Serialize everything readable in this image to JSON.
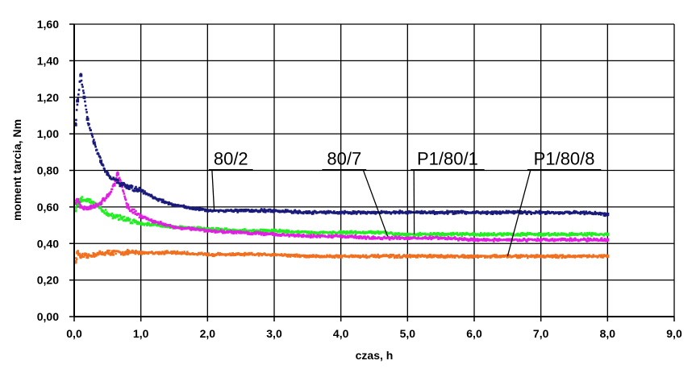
{
  "chart_data": {
    "type": "scatter",
    "xlabel": "czas, h",
    "ylabel": "moment tarcia, Nm",
    "xlim": [
      0,
      9
    ],
    "ylim": [
      0,
      1.6
    ],
    "x_ticks": [
      "0,0",
      "1,0",
      "2,0",
      "3,0",
      "4,0",
      "5,0",
      "6,0",
      "7,0",
      "8,0",
      "9,0"
    ],
    "y_ticks": [
      "0,00",
      "0,20",
      "0,40",
      "0,60",
      "0,80",
      "1,00",
      "1,20",
      "1,40",
      "1,60"
    ],
    "grid": true,
    "series": [
      {
        "name": "80/2",
        "color": "#1a1a7a",
        "x": [
          0.02,
          0.05,
          0.1,
          0.15,
          0.2,
          0.3,
          0.4,
          0.5,
          0.7,
          0.8,
          1.0,
          1.2,
          1.5,
          2.0,
          2.5,
          3.0,
          3.5,
          4.0,
          4.5,
          5.0,
          5.5,
          6.0,
          6.5,
          7.0,
          7.5,
          8.0
        ],
        "values": [
          1.05,
          1.18,
          1.32,
          1.2,
          1.08,
          0.95,
          0.85,
          0.78,
          0.72,
          0.71,
          0.69,
          0.65,
          0.61,
          0.58,
          0.58,
          0.58,
          0.57,
          0.57,
          0.57,
          0.57,
          0.57,
          0.57,
          0.57,
          0.57,
          0.57,
          0.56
        ]
      },
      {
        "name": "80/7",
        "color": "#e020e0",
        "x": [
          0.02,
          0.05,
          0.1,
          0.2,
          0.3,
          0.4,
          0.5,
          0.6,
          0.65,
          0.7,
          0.8,
          1.0,
          1.2,
          1.5,
          2.0,
          2.5,
          3.0,
          3.5,
          4.0,
          4.5,
          5.0,
          5.5,
          6.0,
          6.5,
          7.0,
          7.5,
          8.0
        ],
        "values": [
          0.62,
          0.64,
          0.6,
          0.59,
          0.6,
          0.62,
          0.66,
          0.72,
          0.78,
          0.73,
          0.6,
          0.55,
          0.52,
          0.49,
          0.47,
          0.46,
          0.45,
          0.44,
          0.44,
          0.43,
          0.43,
          0.43,
          0.42,
          0.42,
          0.42,
          0.42,
          0.42
        ]
      },
      {
        "name": "P1/80/1",
        "color": "#22ee22",
        "x": [
          0.02,
          0.05,
          0.1,
          0.2,
          0.3,
          0.5,
          0.8,
          1.0,
          1.5,
          2.0,
          2.5,
          3.0,
          3.5,
          4.0,
          4.5,
          5.0,
          5.5,
          6.0,
          6.5,
          7.0,
          7.5,
          8.0
        ],
        "values": [
          0.58,
          0.61,
          0.64,
          0.64,
          0.62,
          0.56,
          0.53,
          0.51,
          0.49,
          0.48,
          0.47,
          0.47,
          0.46,
          0.46,
          0.46,
          0.45,
          0.45,
          0.45,
          0.45,
          0.45,
          0.45,
          0.45
        ]
      },
      {
        "name": "P1/80/8",
        "color": "#f07020",
        "x": [
          0.02,
          0.05,
          0.1,
          0.2,
          0.3,
          0.5,
          0.8,
          1.0,
          1.5,
          2.0,
          2.5,
          3.0,
          3.5,
          4.0,
          4.5,
          5.0,
          5.5,
          6.0,
          6.5,
          7.0,
          7.5,
          8.0
        ],
        "values": [
          0.3,
          0.35,
          0.33,
          0.33,
          0.34,
          0.35,
          0.35,
          0.35,
          0.35,
          0.34,
          0.34,
          0.34,
          0.33,
          0.33,
          0.33,
          0.33,
          0.33,
          0.33,
          0.33,
          0.33,
          0.33,
          0.33
        ]
      }
    ],
    "annotations": [
      {
        "text": "80/2",
        "series": "80/2",
        "label_x": 2.35,
        "label_y": 0.83,
        "target_x": 2.1,
        "target_y": 0.58
      },
      {
        "text": "80/7",
        "series": "80/7",
        "label_x": 4.05,
        "label_y": 0.83,
        "target_x": 4.7,
        "target_y": 0.44
      },
      {
        "text": "P1/80/1",
        "series": "P1/80/1",
        "label_x": 5.6,
        "label_y": 0.83,
        "target_x": 5.1,
        "target_y": 0.45
      },
      {
        "text": "P1/80/8",
        "series": "P1/80/8",
        "label_x": 7.35,
        "label_y": 0.83,
        "target_x": 6.5,
        "target_y": 0.33
      }
    ]
  }
}
